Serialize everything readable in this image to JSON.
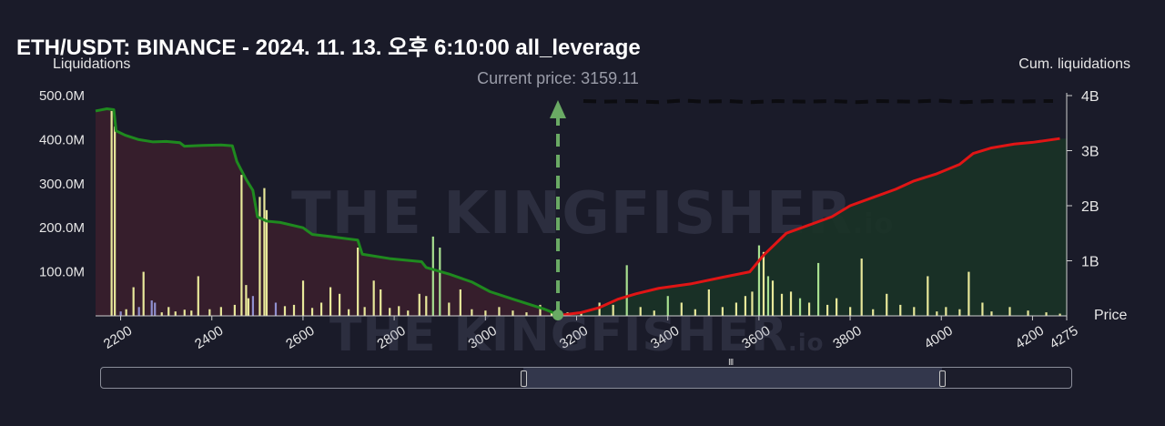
{
  "chart_data": {
    "type": "bar",
    "title": "ETH/USDT: BINANCE - 2024. 11. 13. 오후 6:10:00 all_leverage",
    "ylabel_left": "Liquidations",
    "ylabel_right": "Cum. liquidations",
    "xlabel": "Price",
    "current_price_label": "Current price: 3159.11",
    "current_price": 3159.11,
    "xlim": [
      2145,
      4275
    ],
    "ylim_left": [
      0,
      500000000
    ],
    "ylim_right": [
      0,
      4000000000
    ],
    "x_ticks": [
      "2200",
      "2400",
      "2600",
      "2800",
      "3000",
      "3200",
      "3400",
      "3600",
      "3800",
      "4000",
      "4200",
      "4275"
    ],
    "x_tick_values": [
      2200,
      2400,
      2600,
      2800,
      3000,
      3200,
      3400,
      3600,
      3800,
      4000,
      4200,
      4275
    ],
    "y_left_ticks": [
      "500.0M",
      "400.0M",
      "300.0M",
      "200.0M",
      "100.0M"
    ],
    "y_left_tick_values": [
      500000000,
      400000000,
      300000000,
      200000000,
      100000000
    ],
    "y_right_ticks": [
      "4B",
      "3B",
      "2B",
      "1B"
    ],
    "y_right_tick_values": [
      4000000000,
      3000000000,
      2000000000,
      1000000000
    ],
    "colors": {
      "long_cum": "#1f8a1f",
      "short_cum": "#e01515",
      "long_area": "#3a1f2c",
      "short_area": "#1a3326",
      "bar_yellow": "#e8e89a",
      "bar_green": "#a8e090",
      "bar_purple": "#9090d0",
      "current_price": "#6aaa64"
    },
    "long_cumulative": [
      [
        2145,
        465000000
      ],
      [
        2170,
        470000000
      ],
      [
        2185,
        468000000
      ],
      [
        2190,
        420000000
      ],
      [
        2210,
        410000000
      ],
      [
        2240,
        400000000
      ],
      [
        2270,
        395000000
      ],
      [
        2300,
        396000000
      ],
      [
        2330,
        393000000
      ],
      [
        2340,
        385000000
      ],
      [
        2380,
        387000000
      ],
      [
        2420,
        388000000
      ],
      [
        2445,
        386000000
      ],
      [
        2455,
        350000000
      ],
      [
        2475,
        310000000
      ],
      [
        2490,
        285000000
      ],
      [
        2500,
        225000000
      ],
      [
        2520,
        215000000
      ],
      [
        2550,
        212000000
      ],
      [
        2600,
        200000000
      ],
      [
        2620,
        185000000
      ],
      [
        2660,
        180000000
      ],
      [
        2720,
        172000000
      ],
      [
        2730,
        140000000
      ],
      [
        2790,
        130000000
      ],
      [
        2860,
        123000000
      ],
      [
        2870,
        110000000
      ],
      [
        2920,
        95000000
      ],
      [
        2970,
        77000000
      ],
      [
        3010,
        55000000
      ],
      [
        3060,
        38000000
      ],
      [
        3100,
        25000000
      ],
      [
        3130,
        15000000
      ],
      [
        3159,
        3000000
      ]
    ],
    "short_cumulative_B": [
      [
        3159,
        0.005
      ],
      [
        3210,
        0.06
      ],
      [
        3250,
        0.15
      ],
      [
        3290,
        0.3
      ],
      [
        3330,
        0.4
      ],
      [
        3380,
        0.5
      ],
      [
        3450,
        0.58
      ],
      [
        3520,
        0.7
      ],
      [
        3580,
        0.8
      ],
      [
        3610,
        1.1
      ],
      [
        3660,
        1.5
      ],
      [
        3710,
        1.65
      ],
      [
        3760,
        1.8
      ],
      [
        3800,
        2.0
      ],
      [
        3850,
        2.15
      ],
      [
        3900,
        2.3
      ],
      [
        3940,
        2.45
      ],
      [
        3990,
        2.58
      ],
      [
        4040,
        2.75
      ],
      [
        4070,
        2.95
      ],
      [
        4110,
        3.05
      ],
      [
        4160,
        3.12
      ],
      [
        4200,
        3.15
      ],
      [
        4260,
        3.22
      ]
    ],
    "short_stub_B": [
      [
        3215,
        3.9
      ],
      [
        3260,
        3.89
      ],
      [
        3315,
        3.9
      ],
      [
        3380,
        3.88
      ],
      [
        3430,
        3.91
      ],
      [
        3480,
        3.89
      ],
      [
        3535,
        3.9
      ],
      [
        3580,
        3.88
      ],
      [
        3640,
        3.9
      ],
      [
        3700,
        3.89
      ],
      [
        3760,
        3.9
      ],
      [
        3815,
        3.88
      ],
      [
        3860,
        3.9
      ],
      [
        3940,
        3.89
      ],
      [
        3990,
        3.91
      ],
      [
        4050,
        3.88
      ],
      [
        4110,
        3.9
      ],
      [
        4170,
        3.89
      ],
      [
        4220,
        3.9
      ],
      [
        4245,
        3.9
      ]
    ],
    "liquidation_bars": [
      [
        2180,
        465000000,
        "y"
      ],
      [
        2187,
        430000000,
        "y"
      ],
      [
        2200,
        10000000,
        "p"
      ],
      [
        2212,
        15000000,
        "y"
      ],
      [
        2228,
        65000000,
        "y"
      ],
      [
        2240,
        20000000,
        "p"
      ],
      [
        2250,
        100000000,
        "y"
      ],
      [
        2268,
        35000000,
        "p"
      ],
      [
        2275,
        30000000,
        "p"
      ],
      [
        2290,
        8000000,
        "y"
      ],
      [
        2305,
        20000000,
        "y"
      ],
      [
        2320,
        10000000,
        "y"
      ],
      [
        2340,
        14000000,
        "y"
      ],
      [
        2355,
        12000000,
        "y"
      ],
      [
        2370,
        90000000,
        "y"
      ],
      [
        2395,
        15000000,
        "y"
      ],
      [
        2420,
        20000000,
        "y"
      ],
      [
        2450,
        25000000,
        "y"
      ],
      [
        2465,
        320000000,
        "y"
      ],
      [
        2475,
        70000000,
        "y"
      ],
      [
        2480,
        40000000,
        "y"
      ],
      [
        2490,
        45000000,
        "p"
      ],
      [
        2505,
        270000000,
        "y"
      ],
      [
        2515,
        290000000,
        "y"
      ],
      [
        2520,
        240000000,
        "y"
      ],
      [
        2540,
        30000000,
        "p"
      ],
      [
        2560,
        22000000,
        "y"
      ],
      [
        2580,
        25000000,
        "y"
      ],
      [
        2600,
        80000000,
        "y"
      ],
      [
        2620,
        18000000,
        "y"
      ],
      [
        2640,
        30000000,
        "y"
      ],
      [
        2660,
        65000000,
        "y"
      ],
      [
        2680,
        50000000,
        "y"
      ],
      [
        2700,
        15000000,
        "y"
      ],
      [
        2720,
        155000000,
        "y"
      ],
      [
        2735,
        20000000,
        "y"
      ],
      [
        2755,
        80000000,
        "y"
      ],
      [
        2770,
        60000000,
        "y"
      ],
      [
        2790,
        18000000,
        "y"
      ],
      [
        2810,
        22000000,
        "y"
      ],
      [
        2830,
        12000000,
        "y"
      ],
      [
        2855,
        50000000,
        "y"
      ],
      [
        2870,
        45000000,
        "y"
      ],
      [
        2885,
        180000000,
        "g"
      ],
      [
        2900,
        155000000,
        "g"
      ],
      [
        2920,
        30000000,
        "y"
      ],
      [
        2945,
        60000000,
        "y"
      ],
      [
        2970,
        15000000,
        "y"
      ],
      [
        3000,
        12000000,
        "y"
      ],
      [
        3030,
        20000000,
        "y"
      ],
      [
        3060,
        12000000,
        "y"
      ],
      [
        3090,
        8000000,
        "y"
      ],
      [
        3120,
        25000000,
        "y"
      ],
      [
        3145,
        10000000,
        "y"
      ],
      [
        3180,
        8000000,
        "y"
      ],
      [
        3210,
        10000000,
        "y"
      ],
      [
        3250,
        30000000,
        "y"
      ],
      [
        3280,
        25000000,
        "y"
      ],
      [
        3310,
        115000000,
        "g"
      ],
      [
        3340,
        20000000,
        "y"
      ],
      [
        3370,
        12000000,
        "y"
      ],
      [
        3400,
        45000000,
        "g"
      ],
      [
        3430,
        30000000,
        "y"
      ],
      [
        3460,
        15000000,
        "y"
      ],
      [
        3490,
        60000000,
        "y"
      ],
      [
        3520,
        20000000,
        "y"
      ],
      [
        3550,
        30000000,
        "y"
      ],
      [
        3570,
        45000000,
        "y"
      ],
      [
        3585,
        55000000,
        "y"
      ],
      [
        3600,
        160000000,
        "g"
      ],
      [
        3610,
        145000000,
        "y"
      ],
      [
        3620,
        90000000,
        "g"
      ],
      [
        3630,
        80000000,
        "y"
      ],
      [
        3650,
        50000000,
        "y"
      ],
      [
        3670,
        55000000,
        "y"
      ],
      [
        3690,
        40000000,
        "g"
      ],
      [
        3710,
        30000000,
        "y"
      ],
      [
        3730,
        120000000,
        "g"
      ],
      [
        3750,
        25000000,
        "y"
      ],
      [
        3770,
        40000000,
        "y"
      ],
      [
        3800,
        20000000,
        "y"
      ],
      [
        3825,
        130000000,
        "y"
      ],
      [
        3850,
        15000000,
        "y"
      ],
      [
        3880,
        50000000,
        "y"
      ],
      [
        3910,
        25000000,
        "y"
      ],
      [
        3940,
        20000000,
        "y"
      ],
      [
        3970,
        90000000,
        "y"
      ],
      [
        3990,
        10000000,
        "y"
      ],
      [
        4010,
        20000000,
        "y"
      ],
      [
        4040,
        15000000,
        "y"
      ],
      [
        4060,
        100000000,
        "y"
      ],
      [
        4090,
        30000000,
        "y"
      ],
      [
        4110,
        10000000,
        "y"
      ],
      [
        4150,
        20000000,
        "y"
      ],
      [
        4190,
        12000000,
        "y"
      ],
      [
        4230,
        8000000,
        "y"
      ],
      [
        4260,
        5000000,
        "y"
      ]
    ]
  },
  "watermark": {
    "main": "THE  KINGFISHER",
    "suffix": ".io"
  },
  "zoom": {
    "grip": "III"
  }
}
